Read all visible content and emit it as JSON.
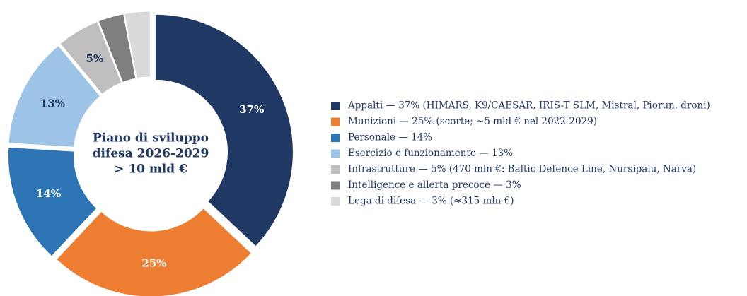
{
  "chart_data": {
    "type": "donut",
    "center_text": [
      "Piano di sviluppo",
      "difesa 2026-2029",
      "> 10 mld €"
    ],
    "categories": [
      "Appalti — 37% (HIMARS, K9/CAESAR, IRIS-T SLM, Mistral, Piorun, droni)",
      "Munizioni — 25% (scorte; ~5 mld € nel 2022-2029)",
      "Personale — 14%",
      "Esercizio e funzionamento — 13%",
      "Infrastrutture — 5% (470 mln €: Baltic Defence Line, Nursipalu, Narva)",
      "Intelligence e allerta precoce — 3%",
      "Lega di difesa — 3% (≈315 mln €)"
    ],
    "values": [
      37,
      25,
      14,
      13,
      5,
      3,
      3
    ],
    "value_labels": [
      "37%",
      "25%",
      "14%",
      "13%",
      "5%",
      null,
      null
    ],
    "colors": [
      "#1f3864",
      "#ed7d31",
      "#2e75b6",
      "#9dc3e6",
      "#bfbfbf",
      "#7f7f7f",
      "#d9d9d9"
    ],
    "legend": "right"
  }
}
